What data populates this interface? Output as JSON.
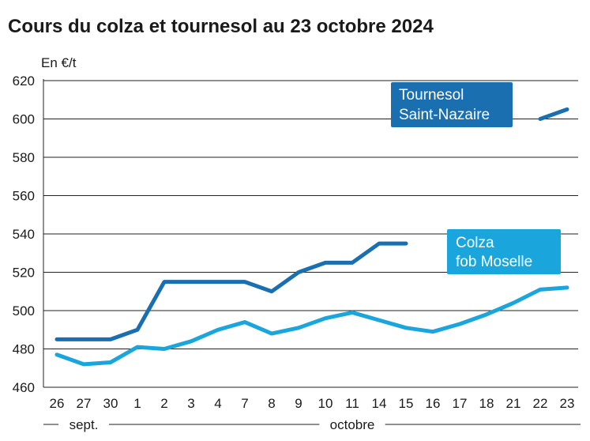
{
  "chart_data": {
    "type": "line",
    "title": "Cours du colza et tournesol au 23 octobre 2024",
    "ylabel": "En €/t",
    "ylim": [
      460,
      620
    ],
    "yticks": [
      460,
      480,
      500,
      520,
      540,
      560,
      580,
      600,
      620
    ],
    "categories": [
      "26",
      "27",
      "30",
      "1",
      "2",
      "3",
      "4",
      "7",
      "8",
      "9",
      "10",
      "11",
      "14",
      "15",
      "16",
      "17",
      "18",
      "21",
      "22",
      "23"
    ],
    "month_groups": [
      {
        "label": "sept.",
        "from": 0,
        "to": 2
      },
      {
        "label": "octobre",
        "from": 3,
        "to": 19
      }
    ],
    "grid": true,
    "series": [
      {
        "name": "Tournesol Saint-Nazaire",
        "color": "#1a6fb0",
        "values": [
          485,
          485,
          485,
          490,
          515,
          515,
          515,
          515,
          510,
          520,
          525,
          525,
          535,
          535,
          null,
          null,
          null,
          null,
          600,
          605
        ]
      },
      {
        "name": "Colza fob Moselle",
        "color": "#1aa6dc",
        "values": [
          477,
          472,
          473,
          481,
          480,
          484,
          490,
          494,
          488,
          491,
          496,
          499,
          495,
          491,
          489,
          493,
          498,
          504,
          511,
          512
        ]
      }
    ]
  },
  "legend": {
    "tournesol": {
      "line1": "Tournesol",
      "line2": "Saint-Nazaire",
      "color": "#1a6fb0"
    },
    "colza": {
      "line1": "Colza",
      "line2": "fob Moselle",
      "color": "#1aa6dc"
    }
  }
}
